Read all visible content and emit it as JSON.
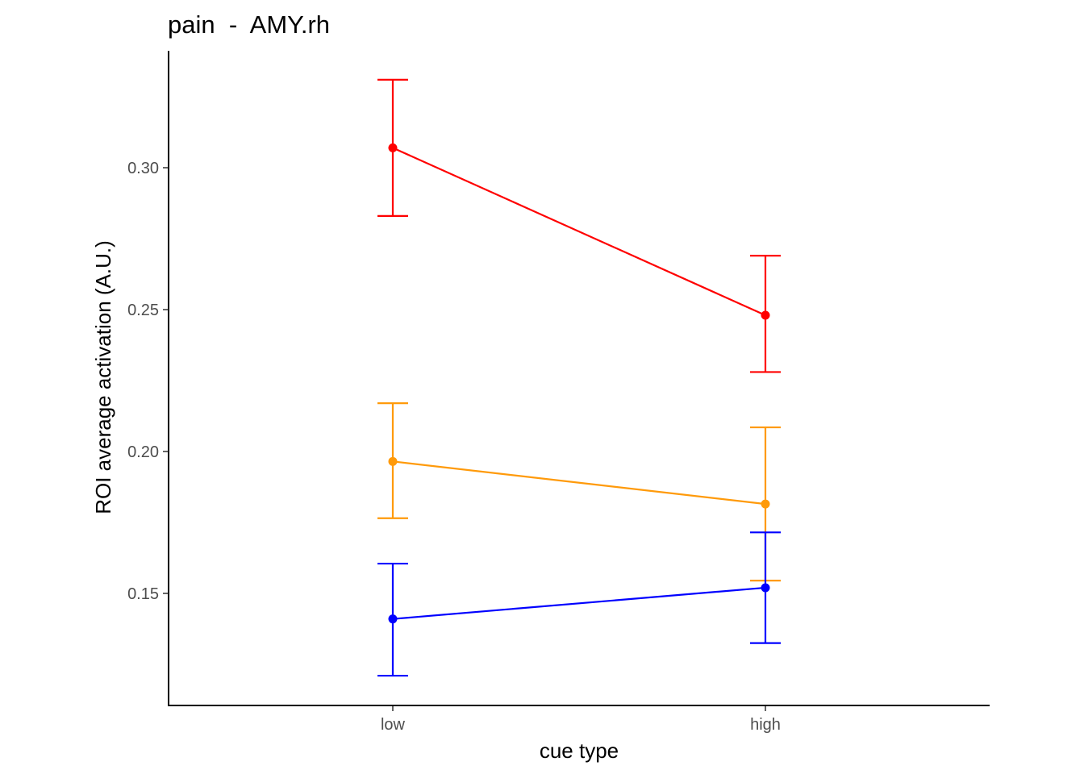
{
  "chart_data": {
    "type": "line",
    "title": "pain  -  AMY.rh",
    "xlabel": "cue type",
    "ylabel": "ROI average activation (A.U.)",
    "categories": [
      "low",
      "high"
    ],
    "ylim": [
      0.11,
      0.34
    ],
    "yticks": [
      0.15,
      0.2,
      0.25,
      0.3
    ],
    "ytick_labels": [
      "0.15",
      "0.20",
      "0.25",
      "0.30"
    ],
    "grid": false,
    "series": [
      {
        "color": "#ff0000",
        "values": [
          0.307,
          0.248
        ],
        "lower": [
          0.283,
          0.228
        ],
        "upper": [
          0.331,
          0.269
        ]
      },
      {
        "color": "#ff9a0a",
        "values": [
          0.1965,
          0.1815
        ],
        "lower": [
          0.1765,
          0.1545
        ],
        "upper": [
          0.217,
          0.2085
        ]
      },
      {
        "color": "#0000ff",
        "values": [
          0.141,
          0.152
        ],
        "lower": [
          0.121,
          0.1325
        ],
        "upper": [
          0.1605,
          0.1715
        ]
      }
    ]
  }
}
